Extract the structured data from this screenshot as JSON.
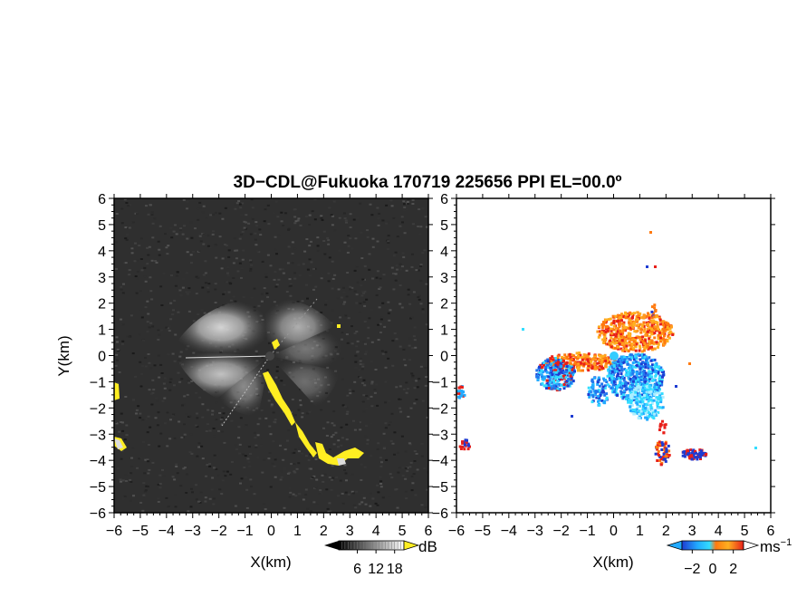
{
  "title": "3D−CDL@Fukuoka 170719 225656 PPI EL=00.0º",
  "chart_data": [
    {
      "type": "heatmap",
      "panel": "reflectivity",
      "xlabel": "X(km)",
      "ylabel": "Y(km)",
      "xlim": [
        -6,
        6
      ],
      "ylim": [
        -6,
        6
      ],
      "x_ticks": [
        "−6",
        "−5",
        "−4",
        "−3",
        "−2",
        "−1",
        "0",
        "1",
        "2",
        "3",
        "4",
        "5",
        "6"
      ],
      "y_ticks": [
        "−6",
        "−5",
        "−4",
        "−3",
        "−2",
        "−1",
        "0",
        "1",
        "2",
        "3",
        "4",
        "5",
        "6"
      ],
      "background_color": "#2f2f2f",
      "highlight_color": "#ffee22",
      "colorbar": {
        "unit": "dB",
        "ticks": [
          "6",
          "12",
          "18"
        ],
        "range": [
          0,
          21
        ],
        "colors": [
          "#000000",
          "#ffffff"
        ]
      }
    },
    {
      "type": "heatmap",
      "panel": "doppler-velocity",
      "xlabel": "X(km)",
      "ylabel": "",
      "xlim": [
        -6,
        6
      ],
      "ylim": [
        -6,
        6
      ],
      "x_ticks": [
        "−6",
        "−5",
        "−4",
        "−3",
        "−2",
        "−1",
        "0",
        "1",
        "2",
        "3",
        "4",
        "5",
        "6"
      ],
      "y_ticks": [
        "−6",
        "−5",
        "−4",
        "−3",
        "−2",
        "−1",
        "0",
        "1",
        "2",
        "3",
        "4",
        "5",
        "6"
      ],
      "background_color": "#ffffff",
      "colorbar": {
        "unit": "ms",
        "unit_exp": "−1",
        "ticks": [
          "−2",
          "0",
          "2"
        ],
        "tick_values": [
          -2,
          0,
          2
        ],
        "range": [
          -3,
          3
        ],
        "colors": [
          "#1e3cd2",
          "#22aaff",
          "#33ddff",
          "#ff7a10",
          "#ffb020",
          "#e8201a"
        ]
      }
    }
  ]
}
